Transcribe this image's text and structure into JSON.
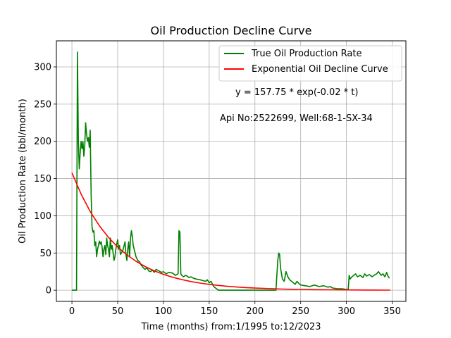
{
  "chart_data": {
    "type": "line",
    "title": "Oil Production Decline Curve",
    "xlabel": "Time (months) from:1/1995 to:12/2023",
    "ylabel": "Oil Production Rate (bbl/month)",
    "xlim": [
      -17,
      365
    ],
    "ylim": [
      -15,
      335
    ],
    "xticks": [
      0,
      50,
      100,
      150,
      200,
      250,
      300,
      350
    ],
    "yticks": [
      0,
      50,
      100,
      150,
      200,
      250,
      300
    ],
    "grid": true,
    "legend_position": "top-right",
    "annotations": [
      "y = 157.75 * exp(-0.02 * t)",
      "Api No:2522699, Well:68-1-SX-34"
    ],
    "colors": {
      "true_rate": "#008000",
      "decline_curve": "#ff0000"
    },
    "series": [
      {
        "name": "True Oil Production Rate",
        "color": "#008000",
        "x": [
          0,
          1,
          2,
          3,
          4,
          5,
          6,
          7,
          8,
          9,
          10,
          11,
          12,
          13,
          14,
          15,
          16,
          17,
          18,
          19,
          20,
          21,
          22,
          23,
          24,
          25,
          26,
          27,
          28,
          29,
          30,
          31,
          32,
          33,
          34,
          35,
          36,
          37,
          38,
          39,
          40,
          41,
          42,
          43,
          44,
          45,
          46,
          47,
          48,
          49,
          50,
          51,
          52,
          53,
          54,
          55,
          56,
          57,
          58,
          59,
          60,
          61,
          62,
          63,
          64,
          65,
          66,
          67,
          68,
          70,
          72,
          74,
          75,
          76,
          77,
          78,
          80,
          82,
          84,
          86,
          88,
          90,
          92,
          95,
          98,
          100,
          103,
          106,
          110,
          113,
          116,
          117,
          118,
          119,
          120,
          122,
          124,
          126,
          128,
          130,
          133,
          136,
          140,
          143,
          146,
          148,
          150,
          152,
          155,
          160,
          180,
          200,
          223,
          225,
          226,
          227,
          228,
          230,
          232,
          234,
          236,
          238,
          240,
          242,
          244,
          246,
          248,
          250,
          255,
          260,
          265,
          270,
          275,
          280,
          282,
          285,
          290,
          295,
          300,
          302,
          303,
          304,
          306,
          308,
          310,
          312,
          315,
          318,
          320,
          322,
          325,
          328,
          330,
          333,
          335,
          338,
          340,
          342,
          344,
          345,
          347
        ],
        "y": [
          0,
          0,
          0,
          0,
          0,
          0,
          320,
          200,
          163,
          185,
          200,
          190,
          200,
          180,
          195,
          225,
          210,
          200,
          205,
          192,
          215,
          130,
          85,
          78,
          80,
          60,
          65,
          45,
          55,
          60,
          66,
          62,
          65,
          58,
          45,
          55,
          60,
          48,
          70,
          60,
          55,
          45,
          70,
          55,
          60,
          50,
          40,
          45,
          55,
          62,
          68,
          55,
          60,
          48,
          50,
          52,
          55,
          60,
          65,
          48,
          40,
          55,
          65,
          45,
          70,
          80,
          72,
          60,
          55,
          45,
          40,
          38,
          35,
          33,
          32,
          30,
          28,
          30,
          26,
          25,
          27,
          24,
          28,
          26,
          24,
          25,
          22,
          24,
          23,
          20,
          22,
          80,
          78,
          22,
          20,
          18,
          20,
          19,
          17,
          18,
          16,
          15,
          14,
          13,
          12,
          14,
          10,
          12,
          5,
          0,
          0,
          0,
          0,
          40,
          50,
          48,
          30,
          15,
          12,
          25,
          18,
          14,
          12,
          10,
          8,
          12,
          9,
          7,
          6,
          5,
          7,
          5,
          6,
          4,
          5,
          3,
          2,
          2,
          1,
          1,
          20,
          15,
          18,
          20,
          22,
          18,
          20,
          17,
          22,
          19,
          21,
          18,
          20,
          22,
          25,
          20,
          22,
          18,
          24,
          20,
          16
        ]
      },
      {
        "name": "Exponential Oil Decline Curve",
        "color": "#ff0000",
        "formula": {
          "a": 157.75,
          "b": 0.02
        },
        "x": [
          0,
          10,
          20,
          30,
          40,
          50,
          60,
          70,
          80,
          90,
          100,
          110,
          120,
          130,
          140,
          150,
          160,
          170,
          180,
          190,
          200,
          210,
          220,
          230,
          240,
          250,
          260,
          270,
          280,
          290,
          300,
          310,
          320,
          330,
          340,
          348
        ],
        "y": [
          157.75,
          129.16,
          105.74,
          86.57,
          70.88,
          58.03,
          47.52,
          38.9,
          31.85,
          26.08,
          21.35,
          17.48,
          14.31,
          11.72,
          9.59,
          7.85,
          6.43,
          5.26,
          4.31,
          3.53,
          2.89,
          2.37,
          1.94,
          1.59,
          1.3,
          1.06,
          0.87,
          0.71,
          0.58,
          0.48,
          0.39,
          0.32,
          0.26,
          0.21,
          0.18,
          0.15
        ]
      }
    ]
  }
}
